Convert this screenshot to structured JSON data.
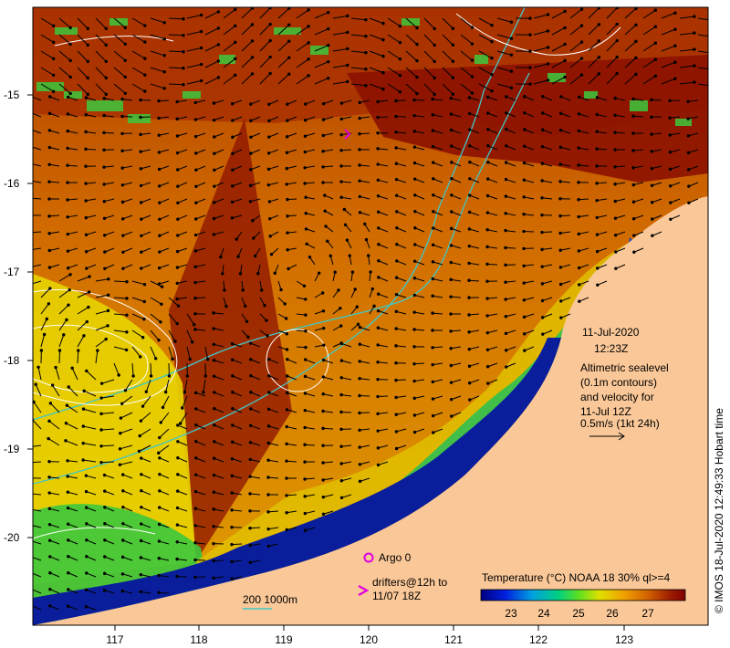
{
  "map": {
    "x_ticks": [
      "117",
      "118",
      "119",
      "120",
      "121",
      "122",
      "123"
    ],
    "y_ticks": [
      "-15",
      "-16",
      "-17",
      "-18",
      "-19",
      "-20"
    ],
    "timestamp_date": "11-Jul-2020",
    "timestamp_time": "12:23Z",
    "legend_lines": [
      "Altimetric sealevel",
      "(0.1m contours)",
      "and velocity for",
      "11-Jul 12Z",
      "0.5m/s (1kt 24h)"
    ],
    "argo_label": "Argo 0",
    "drifters_line1": "drifters@12h to",
    "drifters_line2": "11/07 18Z",
    "depth_label": "200  1000m",
    "colorbar_title": "Temperature (°C) NOAA 18 30% ql>=4",
    "colorbar_ticks": [
      "23",
      "24",
      "25",
      "26",
      "27"
    ],
    "credit": "© IMOS 18-Jul-2020 12:49:33 Hobart time"
  },
  "colors": {
    "land": "#fac898",
    "coast_blue": "#0a1e9c",
    "warm_dark": "#8c1200",
    "warm_mid": "#c04a00",
    "orange": "#e08a00",
    "yellow": "#e8e000",
    "green": "#3cc83c",
    "isobath": "#40c8c8",
    "contour": "#ffffff",
    "argo": "#e000e0"
  }
}
